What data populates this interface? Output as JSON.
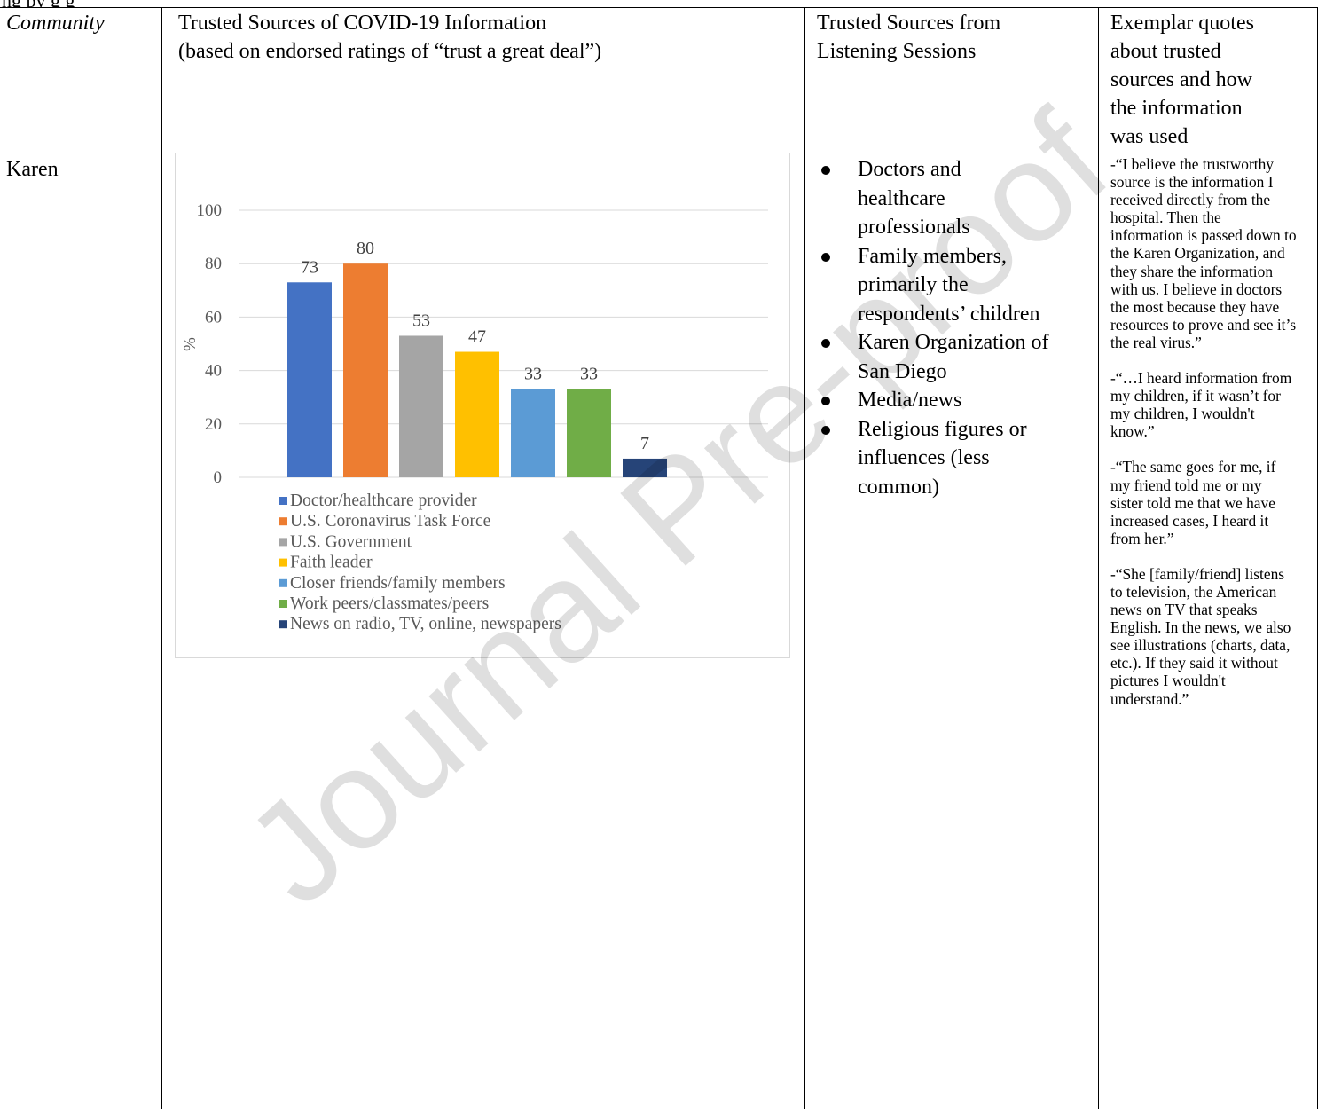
{
  "caption_fragment": "ng                                   py    g                     g",
  "table": {
    "headers": {
      "community": "Community",
      "trusted_sources": "Trusted Sources of COVID-19 Information (based on endorsed ratings of “trust a great deal”)",
      "trusted_sources_line1": "Trusted Sources of COVID-19 Information",
      "trusted_sources_line2": "(based on endorsed ratings of “trust a great deal”)",
      "listening_sessions": "Trusted Sources from Listening Sessions",
      "listening_line1": "Trusted Sources from",
      "listening_line2": "Listening Sessions",
      "exemplar": "Exemplar quotes about trusted sources and how the information was used",
      "exemplar_lines": [
        "Exemplar quotes",
        "about trusted",
        "sources and how",
        "the information",
        "was used"
      ]
    },
    "row": {
      "community": "Karen",
      "listening_sources": [
        [
          "Doctors and",
          "healthcare",
          "professionals"
        ],
        [
          "Family members,",
          "primarily the",
          "respondents’ children"
        ],
        [
          "Karen Organization of",
          "San Diego"
        ],
        [
          "Media/news"
        ],
        [
          "Religious figures or",
          "influences (less",
          "common)"
        ]
      ],
      "quotes": [
        "-“I believe the trustworthy source is the information I received directly from the hospital. Then the information is passed down to the Karen Organization, and they share the information with us. I believe in doctors the most because they have resources to prove and see it’s the real virus.”",
        "-“…I heard information from my children, if it wasn’t for my children, I wouldn't know.”",
        "-“The same goes for me, if my friend told me or my sister told me that we have increased cases, I heard it from her.”",
        "-“She [family/friend] listens to television, the American news on TV that speaks English. In the news, we also see illustrations (charts, data, etc.). If they said it without pictures I wouldn't understand.”"
      ]
    }
  },
  "chart_data": {
    "type": "bar",
    "ylabel": "%",
    "ylim": [
      0,
      100
    ],
    "yticks": [
      0,
      20,
      40,
      60,
      80,
      100
    ],
    "grid": true,
    "legend_placement": "bottom-left",
    "series": [
      {
        "name": "Doctor/healthcare provider",
        "value": 73,
        "color": "#4472C4"
      },
      {
        "name": "U.S. Coronavirus Task Force",
        "value": 80,
        "color": "#ED7D31"
      },
      {
        "name": "U.S. Government",
        "value": 53,
        "color": "#A5A5A5"
      },
      {
        "name": "Faith leader",
        "value": 47,
        "color": "#FFC000"
      },
      {
        "name": "Closer friends/family members",
        "value": 33,
        "color": "#5B9BD5"
      },
      {
        "name": "Work peers/classmates/peers",
        "value": 33,
        "color": "#70AD47"
      },
      {
        "name": "News on radio, TV, online, newspapers",
        "value": 7,
        "color": "#264478"
      }
    ]
  },
  "watermark": "Journal Pre-proof"
}
